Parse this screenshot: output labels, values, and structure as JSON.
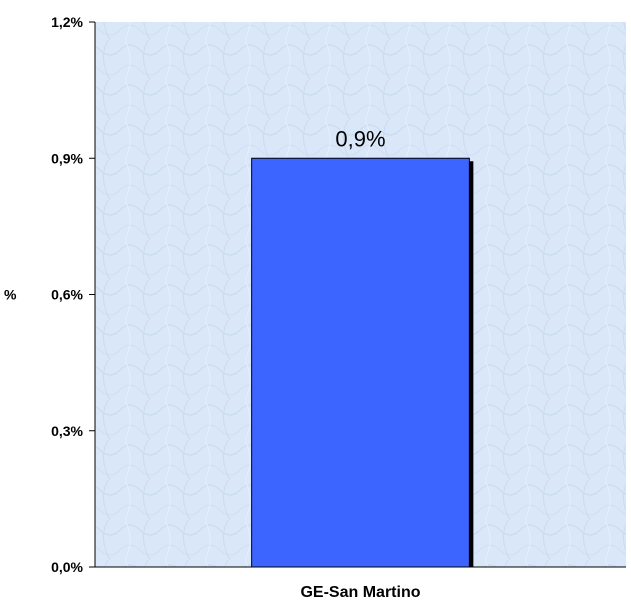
{
  "chart_data": {
    "type": "bar",
    "categories": [
      "GE-San Martino"
    ],
    "values": [
      0.9
    ],
    "data_labels": [
      "0,9%"
    ],
    "ylabel": "%",
    "xlabel": "",
    "title": "",
    "ylim": [
      0,
      1.2
    ],
    "y_ticks": [
      0,
      0.3,
      0.6,
      0.9,
      1.2
    ],
    "y_tick_labels": [
      "0,0%",
      "0,3%",
      "0,6%",
      "0,9%",
      "1,2%"
    ],
    "grid": false,
    "legend": "none",
    "colors": {
      "bar": "#3c64ff",
      "bar_shadow": "#000000",
      "plot_background": "#d9e7f8",
      "plot_pattern": "#c6daf2"
    }
  }
}
